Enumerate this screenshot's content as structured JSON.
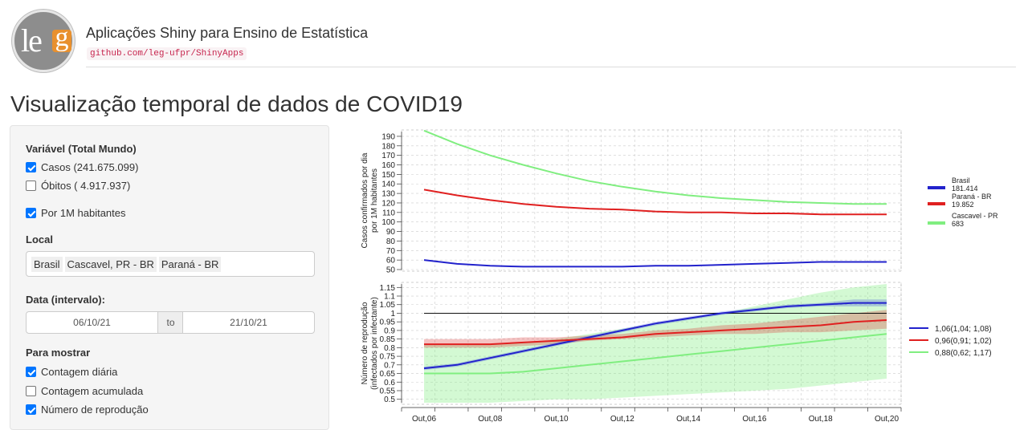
{
  "header": {
    "title": "Aplicações Shiny para Ensino de Estatística",
    "link": "github.com/leg-ufpr/ShinyApps",
    "logo_text": "leg"
  },
  "page_title": "Visualização temporal de dados de COVID19",
  "sidebar": {
    "variable_label": "Variável (Total Mundo)",
    "cases_label": "Casos (241.675.099)",
    "cases_checked": true,
    "deaths_label": "Óbitos ( 4.917.937)",
    "deaths_checked": false,
    "per_million_label": "Por 1M habitantes",
    "per_million_checked": true,
    "local_label": "Local",
    "locations": [
      "Brasil",
      "Cascavel, PR - BR",
      "Paraná - BR"
    ],
    "date_label": "Data (intervalo):",
    "date_start": "06/10/21",
    "date_sep": "to",
    "date_end": "21/10/21",
    "show_label": "Para mostrar",
    "show_options": [
      {
        "label": "Contagem diária",
        "checked": true
      },
      {
        "label": "Contagem acumulada",
        "checked": false
      },
      {
        "label": "Número de reprodução",
        "checked": true
      }
    ]
  },
  "colors": {
    "brasil": "#2222cc",
    "parana": "#e02020",
    "cascavel": "#80ee80"
  },
  "chart_data": [
    {
      "type": "line",
      "ylabel": "Casos confirmados por dia\npor 1M habitantes",
      "ylim": [
        50,
        195
      ],
      "yticks": [
        50,
        60,
        70,
        80,
        90,
        100,
        110,
        120,
        130,
        140,
        150,
        160,
        170,
        180,
        190
      ],
      "x": [
        "06",
        "07",
        "08",
        "09",
        "10",
        "11",
        "12",
        "13",
        "14",
        "15",
        "16",
        "17",
        "18",
        "19",
        "20"
      ],
      "legend_position": "right",
      "series": [
        {
          "name": "Brasil",
          "extra": "181.414",
          "values": [
            60,
            56,
            54,
            53,
            53,
            53,
            53,
            54,
            54,
            55,
            56,
            57,
            58,
            58,
            58
          ]
        },
        {
          "name": "Paraná - BR",
          "extra": "19.852",
          "values": [
            134,
            128,
            123,
            119,
            116,
            114,
            113,
            111,
            110,
            110,
            109,
            109,
            108,
            108,
            108
          ]
        },
        {
          "name": "Cascavel - PR",
          "extra": "683",
          "values": [
            196,
            182,
            170,
            160,
            151,
            143,
            137,
            132,
            128,
            125,
            123,
            121,
            120,
            119,
            119
          ]
        }
      ]
    },
    {
      "type": "line",
      "ylabel": "Número de reprodução\n(infectados por infectante)",
      "ylim": [
        0.48,
        1.17
      ],
      "yticks": [
        0.5,
        0.55,
        0.6,
        0.65,
        0.7,
        0.75,
        0.8,
        0.85,
        0.9,
        0.95,
        1,
        1.05,
        1.1,
        1.15
      ],
      "reference_line": 1,
      "x_tick_labels": [
        "Out,06",
        "Out,08",
        "Out,10",
        "Out,12",
        "Out,14",
        "Out,16",
        "Out,18",
        "Out,20"
      ],
      "legend_position": "right",
      "series": [
        {
          "name": "1,06(1,04; 1,08)",
          "values": [
            0.68,
            0.7,
            0.74,
            0.78,
            0.82,
            0.86,
            0.9,
            0.94,
            0.97,
            1.0,
            1.02,
            1.04,
            1.05,
            1.06,
            1.06
          ],
          "lower": [
            0.67,
            0.69,
            0.73,
            0.77,
            0.81,
            0.85,
            0.89,
            0.93,
            0.96,
            0.99,
            1.01,
            1.03,
            1.04,
            1.04,
            1.04
          ],
          "upper": [
            0.69,
            0.71,
            0.75,
            0.79,
            0.83,
            0.87,
            0.91,
            0.95,
            0.98,
            1.01,
            1.03,
            1.05,
            1.06,
            1.08,
            1.08
          ]
        },
        {
          "name": "0,96(0,91; 1,02)",
          "values": [
            0.82,
            0.82,
            0.82,
            0.83,
            0.84,
            0.85,
            0.86,
            0.88,
            0.89,
            0.9,
            0.91,
            0.92,
            0.93,
            0.95,
            0.96
          ],
          "lower": [
            0.8,
            0.8,
            0.8,
            0.81,
            0.82,
            0.84,
            0.85,
            0.86,
            0.87,
            0.88,
            0.88,
            0.89,
            0.89,
            0.9,
            0.91
          ],
          "upper": [
            0.85,
            0.85,
            0.85,
            0.86,
            0.86,
            0.87,
            0.88,
            0.9,
            0.91,
            0.93,
            0.94,
            0.96,
            0.98,
            1.0,
            1.02
          ]
        },
        {
          "name": "0,88(0,62; 1,17)",
          "values": [
            0.65,
            0.65,
            0.65,
            0.66,
            0.68,
            0.7,
            0.72,
            0.74,
            0.76,
            0.78,
            0.8,
            0.82,
            0.84,
            0.86,
            0.88
          ],
          "lower": [
            0.48,
            0.48,
            0.48,
            0.49,
            0.5,
            0.5,
            0.51,
            0.52,
            0.53,
            0.54,
            0.55,
            0.56,
            0.58,
            0.6,
            0.62
          ],
          "upper": [
            0.82,
            0.82,
            0.82,
            0.83,
            0.85,
            0.88,
            0.91,
            0.94,
            0.97,
            1.0,
            1.04,
            1.08,
            1.12,
            1.15,
            1.17
          ]
        }
      ]
    }
  ]
}
